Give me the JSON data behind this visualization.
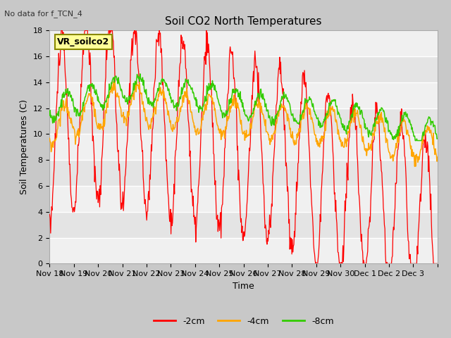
{
  "title": "Soil CO2 North Temperatures",
  "ylabel": "Soil Temperatures (C)",
  "xlabel": "Time",
  "top_annotation": "No data for f_TCN_4",
  "box_label": "VR_soilco2",
  "ylim": [
    0,
    18
  ],
  "xlim": [
    0,
    16
  ],
  "series_labels": [
    "-2cm",
    "-4cm",
    "-8cm"
  ],
  "series_colors": [
    "#ff0000",
    "#ffa500",
    "#33cc00"
  ],
  "xtick_positions": [
    0,
    1,
    2,
    3,
    4,
    5,
    6,
    7,
    8,
    9,
    10,
    11,
    12,
    13,
    14,
    15,
    16
  ],
  "xtick_labels": [
    "Nov 18",
    "Nov 19",
    "Nov 20",
    "Nov 21",
    "Nov 22",
    "Nov 23",
    "Nov 24",
    "Nov 25",
    "Nov 26",
    "Nov 27",
    "Nov 28",
    "Nov 29",
    "Nov 30",
    "Dec 1",
    "Dec 2",
    "Dec 3",
    ""
  ],
  "ytick_values": [
    0,
    2,
    4,
    6,
    8,
    10,
    12,
    14,
    16,
    18
  ],
  "band_colors": [
    "#f0f0f0",
    "#e4e4e4"
  ],
  "fig_bg": "#c8c8c8",
  "grid_line_color": "#ffffff",
  "title_fontsize": 11,
  "label_fontsize": 9,
  "tick_fontsize": 8
}
